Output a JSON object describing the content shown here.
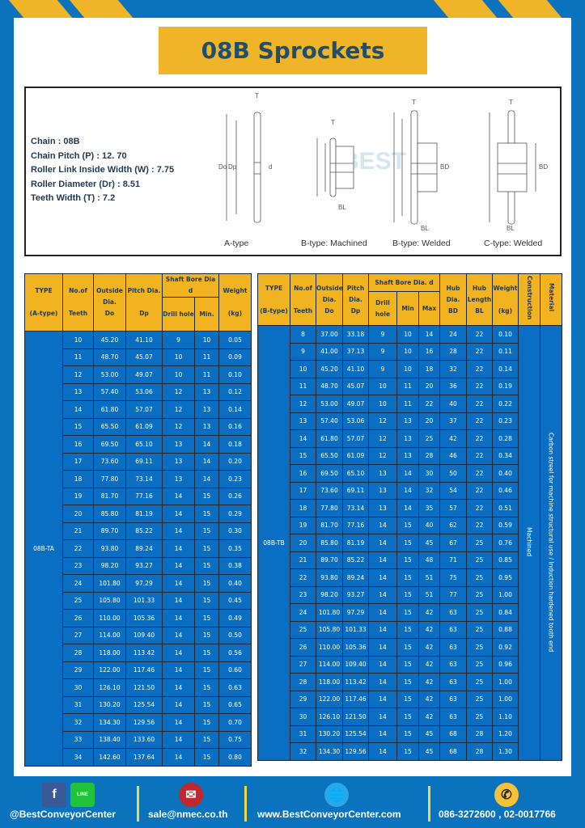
{
  "title": "08B Sprockets",
  "specs": [
    "Chain  : 08B",
    "Chain Pitch (P)  :  12. 70",
    "Roller Link Inside Width (W)  :  7.75",
    "Roller Diameter (Dr)  : 8.51",
    "Teeth Width (T)  :  7.2"
  ],
  "diagram_captions": [
    "A-type",
    "B-type: Machined",
    "B-type: Welded",
    "C-type: Welded"
  ],
  "diagram_labels": {
    "t": "T",
    "do": "Do",
    "dp": "Dp",
    "d": "d",
    "bd": "BD",
    "bl": "BL"
  },
  "watermark": "BEST CONVEYOR CENTER",
  "colors": {
    "frame": "#0b72bd",
    "header": "#f2b320",
    "cell": "#0a6fc2",
    "title_text": "#1f4e6e"
  },
  "table_a": {
    "headers": {
      "type": "TYPE",
      "type_sub": "(A-type)",
      "teeth": "No.of",
      "teeth_sub": "Teeth",
      "outside": "Outside",
      "outside_sub": "Dia.",
      "outside_sub2": "Do",
      "pitch": "Pitch Dia.",
      "pitch_sub": "Dp",
      "bore": "Shaft Bore Dia d",
      "drill": "Drill hole",
      "min": "Min.",
      "weight": "Weight",
      "weight_sub": "(kg)"
    },
    "type_value": "08B-TA",
    "rows": [
      [
        "10",
        "45.20",
        "41.10",
        "9",
        "10",
        "0.05"
      ],
      [
        "11",
        "48.70",
        "45.07",
        "10",
        "11",
        "0.09"
      ],
      [
        "12",
        "53.00",
        "49.07",
        "10",
        "11",
        "0.10"
      ],
      [
        "13",
        "57.40",
        "53.06",
        "12",
        "13",
        "0.12"
      ],
      [
        "14",
        "61.80",
        "57.07",
        "12",
        "13",
        "0.14"
      ],
      [
        "15",
        "65.50",
        "61.09",
        "12",
        "13",
        "0.16"
      ],
      [
        "16",
        "69.50",
        "65.10",
        "13",
        "14",
        "0.18"
      ],
      [
        "17",
        "73.60",
        "69.11",
        "13",
        "14",
        "0.20"
      ],
      [
        "18",
        "77.80",
        "73.14",
        "13",
        "14",
        "0.23"
      ],
      [
        "19",
        "81.70",
        "77.16",
        "14",
        "15",
        "0.26"
      ],
      [
        "20",
        "85.80",
        "81.19",
        "14",
        "15",
        "0.29"
      ],
      [
        "21",
        "89.70",
        "85.22",
        "14",
        "15",
        "0.30"
      ],
      [
        "22",
        "93.80",
        "89.24",
        "14",
        "15",
        "0.35"
      ],
      [
        "23",
        "98.20",
        "93.27",
        "14",
        "15",
        "0.38"
      ],
      [
        "24",
        "101.80",
        "97.29",
        "14",
        "15",
        "0.40"
      ],
      [
        "25",
        "105.80",
        "101.33",
        "14",
        "15",
        "0.45"
      ],
      [
        "26",
        "110.00",
        "105.36",
        "14",
        "15",
        "0.49"
      ],
      [
        "27",
        "114.00",
        "109.40",
        "14",
        "15",
        "0.50"
      ],
      [
        "28",
        "118.00",
        "113.42",
        "14",
        "15",
        "0.56"
      ],
      [
        "29",
        "122.00",
        "117.46",
        "14",
        "15",
        "0.60"
      ],
      [
        "30",
        "126.10",
        "121.50",
        "14",
        "15",
        "0.63"
      ],
      [
        "31",
        "130.20",
        "125.54",
        "14",
        "15",
        "0.65"
      ],
      [
        "32",
        "134.30",
        "129.56",
        "14",
        "15",
        "0.70"
      ],
      [
        "33",
        "138.40",
        "133.60",
        "14",
        "15",
        "0.75"
      ],
      [
        "34",
        "142.60",
        "137.64",
        "14",
        "15",
        "0.80"
      ]
    ]
  },
  "table_b": {
    "headers": {
      "type": "TYPE",
      "type_sub": "(B-type)",
      "teeth": "No.of",
      "teeth_sub": "Teeth",
      "outside": "Outside",
      "outside_sub": "Dia.",
      "outside_sub2": "Do",
      "pitch": "Pitch",
      "pitch_sub": "Dia.",
      "pitch_sub2": "Dp",
      "bore": "Shaft Bore Dia.  d",
      "drill": "Drill hole",
      "min": "Min",
      "max": "Max",
      "hubdia": "Hub",
      "hubdia_sub": "Dia.",
      "hubdia_sub2": "BD",
      "hublen": "Hub",
      "hublen_sub": "Length",
      "hublen_sub2": "BL",
      "weight": "Weight",
      "weight_sub": "(kg)",
      "construction": "Construction",
      "material": "Material"
    },
    "type_value": "08B-TB",
    "construction_value": "Machined",
    "material_value": "Carbon streel for machine structural use / Induction hardened tooth end",
    "rows": [
      [
        "8",
        "37.00",
        "33.18",
        "9",
        "10",
        "14",
        "24",
        "22",
        "0.10"
      ],
      [
        "9",
        "41.00",
        "37.13",
        "9",
        "10",
        "16",
        "28",
        "22",
        "0.11"
      ],
      [
        "10",
        "45.20",
        "41.10",
        "9",
        "10",
        "18",
        "32",
        "22",
        "0.14"
      ],
      [
        "11",
        "48.70",
        "45.07",
        "10",
        "11",
        "20",
        "36",
        "22",
        "0.19"
      ],
      [
        "12",
        "53.00",
        "49.07",
        "10",
        "11",
        "22",
        "40",
        "22",
        "0.22"
      ],
      [
        "13",
        "57.40",
        "53.06",
        "12",
        "13",
        "20",
        "37",
        "22",
        "0.23"
      ],
      [
        "14",
        "61.80",
        "57.07",
        "12",
        "13",
        "25",
        "42",
        "22",
        "0.28"
      ],
      [
        "15",
        "65.50",
        "61.09",
        "12",
        "13",
        "28",
        "46",
        "22",
        "0.34"
      ],
      [
        "16",
        "69.50",
        "65.10",
        "13",
        "14",
        "30",
        "50",
        "22",
        "0.40"
      ],
      [
        "17",
        "73.60",
        "69.11",
        "13",
        "14",
        "32",
        "54",
        "22",
        "0.46"
      ],
      [
        "18",
        "77.80",
        "73.14",
        "13",
        "14",
        "35",
        "57",
        "22",
        "0.51"
      ],
      [
        "19",
        "81.70",
        "77.16",
        "14",
        "15",
        "40",
        "62",
        "22",
        "0.59"
      ],
      [
        "20",
        "85.80",
        "81.19",
        "14",
        "15",
        "45",
        "67",
        "25",
        "0.76"
      ],
      [
        "21",
        "89.70",
        "85.22",
        "14",
        "15",
        "48",
        "71",
        "25",
        "0.85"
      ],
      [
        "22",
        "93.80",
        "89.24",
        "14",
        "15",
        "51",
        "75",
        "25",
        "0.95"
      ],
      [
        "23",
        "98.20",
        "93.27",
        "14",
        "15",
        "51",
        "77",
        "25",
        "1.00"
      ],
      [
        "24",
        "101.80",
        "97.29",
        "14",
        "15",
        "42",
        "63",
        "25",
        "0.84"
      ],
      [
        "25",
        "105.80",
        "101.33",
        "14",
        "15",
        "42",
        "63",
        "25",
        "0.88"
      ],
      [
        "26",
        "110.00",
        "105.36",
        "14",
        "15",
        "42",
        "63",
        "25",
        "0.92"
      ],
      [
        "27",
        "114.00",
        "109.40",
        "14",
        "15",
        "42",
        "63",
        "25",
        "0.96"
      ],
      [
        "28",
        "118.00",
        "113.42",
        "14",
        "15",
        "42",
        "63",
        "25",
        "1.00"
      ],
      [
        "29",
        "122.00",
        "117.46",
        "14",
        "15",
        "42",
        "63",
        "25",
        "1.00"
      ],
      [
        "30",
        "126.10",
        "121.50",
        "14",
        "15",
        "42",
        "63",
        "25",
        "1.10"
      ],
      [
        "31",
        "130.20",
        "125.54",
        "14",
        "15",
        "45",
        "68",
        "28",
        "1.20"
      ],
      [
        "32",
        "134.30",
        "129.56",
        "14",
        "15",
        "45",
        "68",
        "28",
        "1.30"
      ]
    ]
  },
  "footer": {
    "social": "@BestConveyorCenter",
    "email": "sale@nmec.co.th",
    "website": "www.BestConveyorCenter.com",
    "phone": "086-3272600 , 02-0017766",
    "line_label": "LINE",
    "icons": [
      "facebook-icon",
      "line-icon",
      "email-icon",
      "globe-icon",
      "phone-icon"
    ]
  }
}
